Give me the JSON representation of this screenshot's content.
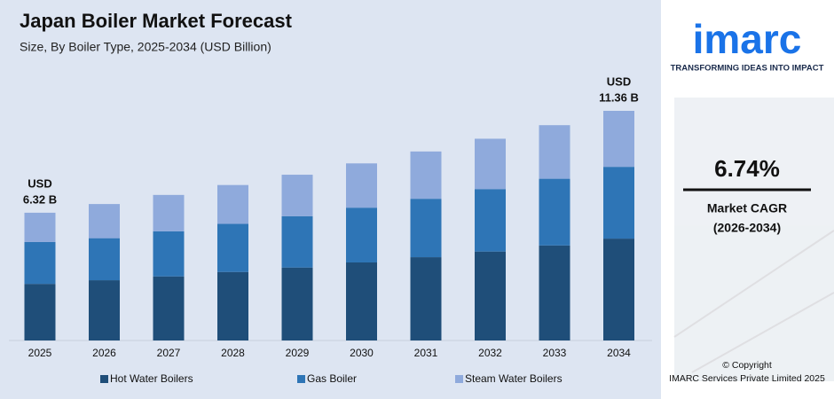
{
  "chart_data": {
    "type": "stacked-bar",
    "title": "Japan Boiler Market Forecast",
    "subtitle": "Size, By Boiler Type, 2025-2034 (USD Billion)",
    "categories": [
      "2025",
      "2026",
      "2027",
      "2028",
      "2029",
      "2030",
      "2031",
      "2032",
      "2033",
      "2034"
    ],
    "series": [
      {
        "name": "Hot Water Boilers",
        "color": "#1f4e79",
        "values": [
          2.8,
          2.98,
          3.17,
          3.39,
          3.61,
          3.86,
          4.12,
          4.4,
          4.7,
          5.04
        ]
      },
      {
        "name": "Gas Boiler",
        "color": "#2e75b6",
        "values": [
          2.07,
          2.08,
          2.23,
          2.38,
          2.54,
          2.71,
          2.89,
          3.09,
          3.3,
          3.55
        ]
      },
      {
        "name": "Steam Water Boilers",
        "color": "#8faadc",
        "values": [
          1.45,
          1.69,
          1.8,
          1.92,
          2.05,
          2.19,
          2.34,
          2.49,
          2.65,
          2.77
        ]
      }
    ],
    "annotations": [
      {
        "x": "2025",
        "lines": [
          "USD",
          "6.32 B"
        ]
      },
      {
        "x": "2034",
        "lines": [
          "USD",
          "11.36 B"
        ]
      }
    ],
    "legend": "bottom"
  },
  "sidebar": {
    "logo": "imarc",
    "tagline": "TRANSFORMING IDEAS INTO IMPACT",
    "cagr": "6.74%",
    "cagr_label": "Market CAGR",
    "cagr_period": "(2026-2034)",
    "copyright": "© Copyright",
    "company": "IMARC Services Private Limited 2025"
  }
}
